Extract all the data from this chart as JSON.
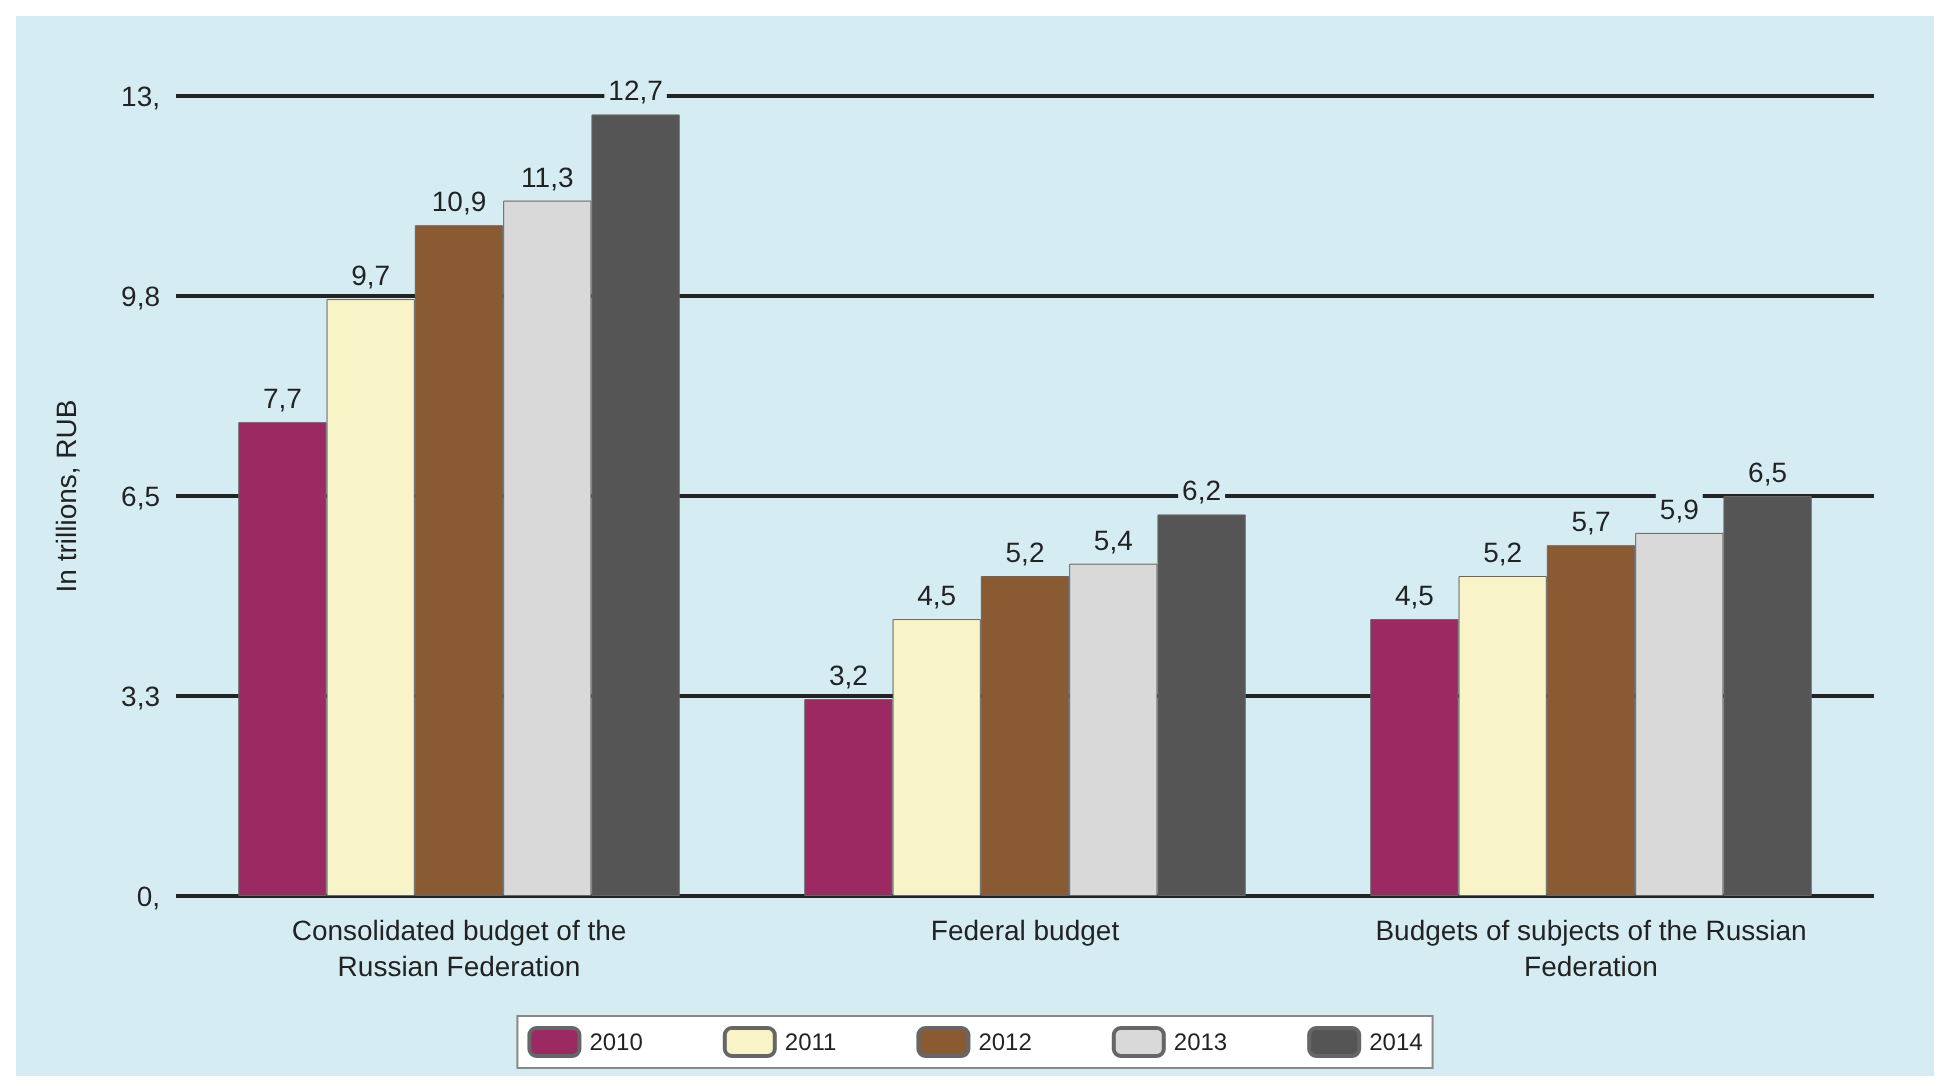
{
  "chart_data": {
    "type": "bar",
    "ylabel": "In trillions, RUB",
    "categories": [
      "Consolidated budget of the\nRussian Federation",
      "Federal budget",
      "Budgets of subjects of the Russian\nFederation"
    ],
    "series": [
      {
        "name": "2010",
        "color": "#9b2a62",
        "values": [
          7.7,
          3.2,
          4.5
        ],
        "value_labels": [
          "7,7",
          "3,2",
          "4,5"
        ]
      },
      {
        "name": "2011",
        "color": "#f8f4c8",
        "values": [
          9.7,
          4.5,
          5.2
        ],
        "value_labels": [
          "9,7",
          "4,5",
          "5,2"
        ]
      },
      {
        "name": "2012",
        "color": "#8a5a32",
        "values": [
          10.9,
          5.2,
          5.7
        ],
        "value_labels": [
          "10,9",
          "5,2",
          "5,7"
        ]
      },
      {
        "name": "2013",
        "color": "#d9d9d9",
        "values": [
          11.3,
          5.4,
          5.9
        ],
        "value_labels": [
          "11,3",
          "5,4",
          "5,9"
        ]
      },
      {
        "name": "2014",
        "color": "#555555",
        "values": [
          12.7,
          6.2,
          6.5
        ],
        "value_labels": [
          "12,7",
          "6,2",
          "6,5"
        ]
      }
    ],
    "ylim": [
      0,
      13
    ],
    "yticks": [
      {
        "value": 0,
        "label": "0,"
      },
      {
        "value": 3.25,
        "label": "3,3"
      },
      {
        "value": 6.5,
        "label": "6,5"
      },
      {
        "value": 9.75,
        "label": "9,8"
      },
      {
        "value": 13,
        "label": "13,"
      }
    ],
    "grid": "y",
    "legend": "bottom"
  }
}
